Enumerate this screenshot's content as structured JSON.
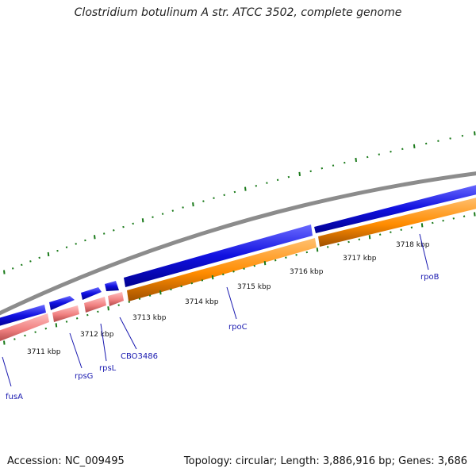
{
  "title": "Clostridium botulinum A str. ATCC 3502, complete genome",
  "footer": {
    "accession": "Accession: NC_009495",
    "summary": "Topology: circular; Length: 3,886,916 bp; Genes: 3,686"
  },
  "colors": {
    "backbone": "#8c8c8c",
    "forward_gene": "#1010e0",
    "reverse_gene": "#f08080",
    "reverse_operon": "#ff8c00",
    "tick": "#1a7a1a",
    "label": "#1a1ab0"
  },
  "kbp_labels": [
    "3711 kbp",
    "3712 kbp",
    "3713 kbp",
    "3714 kbp",
    "3715 kbp",
    "3716 kbp",
    "3717 kbp",
    "3718 kbp"
  ],
  "genes": [
    "fusA",
    "rpsG",
    "rpsL",
    "CBO3486",
    "rpoC",
    "rpoB"
  ]
}
